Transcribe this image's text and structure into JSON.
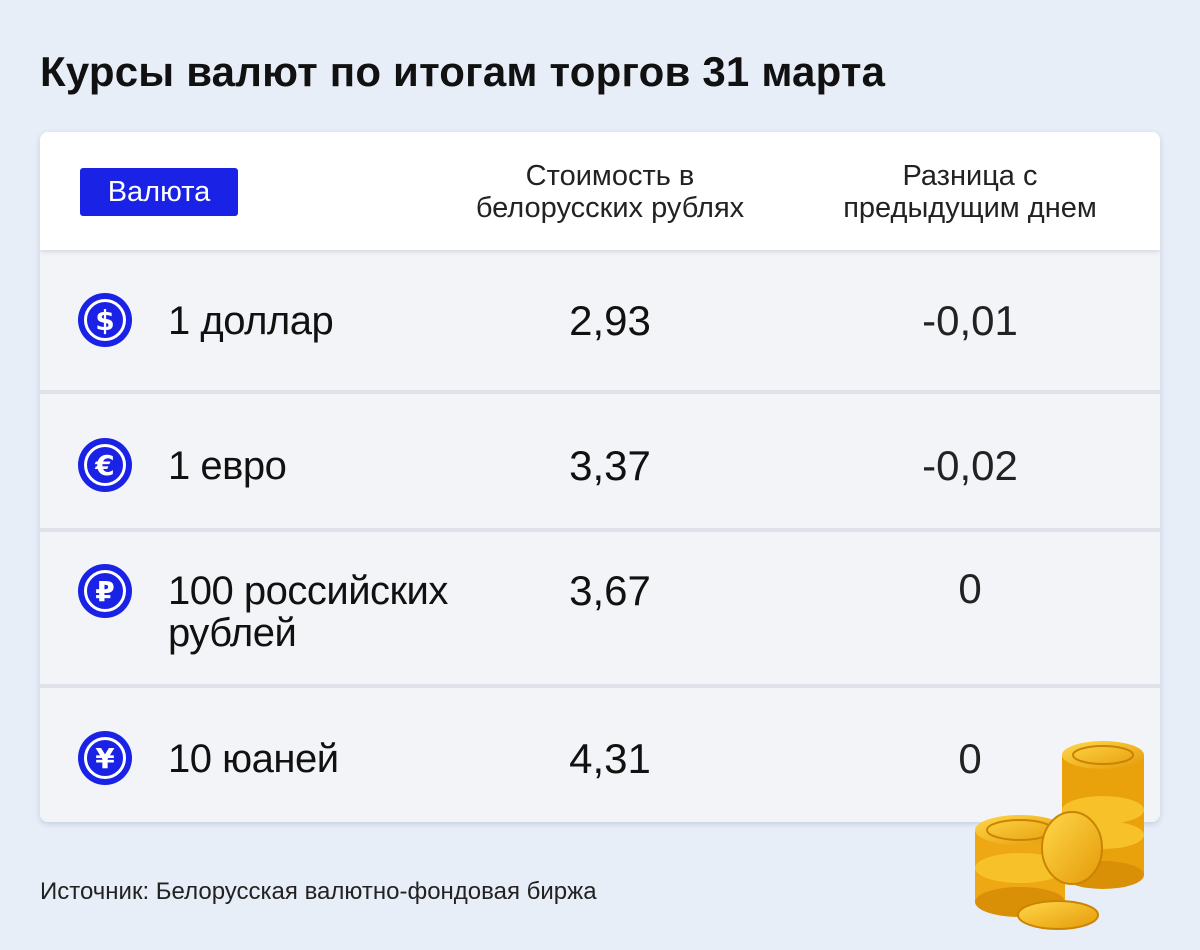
{
  "title": "Курсы валют по итогам торгов 31 марта",
  "table": {
    "headers": {
      "currency": "Валюта",
      "cost_line1": "Стоимость в",
      "cost_line2": "белорусских рублях",
      "diff_line1": "Разница с",
      "diff_line2": "предыдущим днем"
    },
    "rows": [
      {
        "icon": "dollar-icon",
        "symbol": "$",
        "name_line1": "1 доллар",
        "name_line2": "",
        "value": "2,93",
        "diff": "-0,01"
      },
      {
        "icon": "euro-icon",
        "symbol": "€",
        "name_line1": "1 евро",
        "name_line2": "",
        "value": "3,37",
        "diff": "-0,02"
      },
      {
        "icon": "ruble-icon",
        "symbol": "₽",
        "name_line1": "100 российских",
        "name_line2": "рублей",
        "value": "3,67",
        "diff": "0"
      },
      {
        "icon": "yuan-icon",
        "symbol": "¥",
        "name_line1": "10 юаней",
        "name_line2": "",
        "value": "4,31",
        "diff": "0"
      }
    ]
  },
  "source": "Источник: Белорусская валютно-фондовая биржа",
  "colors": {
    "accent": "#1a22e6",
    "background": "#e8eef8",
    "coin": "#f2b515"
  }
}
